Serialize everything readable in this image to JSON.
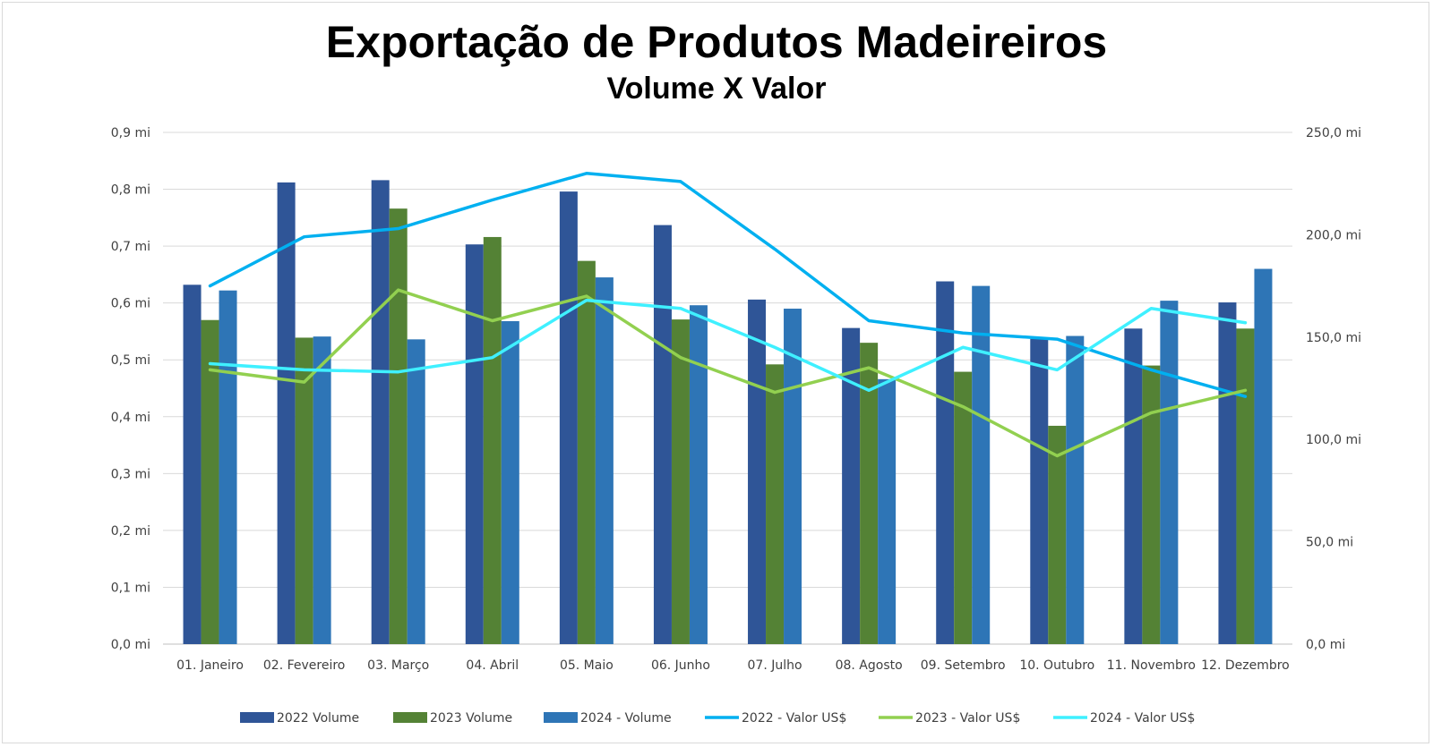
{
  "chart_data": {
    "type": "bar",
    "title": "Exportação de Produtos Madeireiros",
    "subtitle": "Volume X Valor",
    "categories": [
      "01. Janeiro",
      "02. Fevereiro",
      "03. Março",
      "04. Abril",
      "05. Maio",
      "06. Junho",
      "07. Julho",
      "08. Agosto",
      "09. Setembro",
      "10. Outubro",
      "11. Novembro",
      "12. Dezembro"
    ],
    "y_left": {
      "range": [
        0,
        0.9
      ],
      "tick_labels": [
        "0,0 mi",
        "0,1 mi",
        "0,2 mi",
        "0,3 mi",
        "0,4 mi",
        "0,5 mi",
        "0,6 mi",
        "0,7 mi",
        "0,8 mi",
        "0,9 mi"
      ]
    },
    "y_right": {
      "range": [
        0,
        250
      ],
      "tick_labels": [
        "0,0 mi",
        "50,0 mi",
        "100,0 mi",
        "150,0 mi",
        "200,0 mi",
        "250,0 mi"
      ]
    },
    "grid": true,
    "legend_position": "bottom",
    "bar_series": [
      {
        "name": "2022 Volume",
        "color": "#2f5597",
        "values": [
          0.632,
          0.812,
          0.816,
          0.703,
          0.796,
          0.737,
          0.606,
          0.556,
          0.638,
          0.537,
          0.555,
          0.601
        ]
      },
      {
        "name": "2023 Volume",
        "color": "#548235",
        "values": [
          0.57,
          0.539,
          0.766,
          0.716,
          0.674,
          0.571,
          0.492,
          0.53,
          0.479,
          0.384,
          0.49,
          0.555
        ]
      },
      {
        "name": "2024 - Volume",
        "color": "#2e75b6",
        "values": [
          0.622,
          0.541,
          0.536,
          0.568,
          0.645,
          0.596,
          0.59,
          0.466,
          0.63,
          0.542,
          0.604,
          0.66
        ]
      }
    ],
    "line_series": [
      {
        "name": "2022 - Valor US$",
        "color": "#00b0f0",
        "values": [
          175,
          199,
          203,
          217,
          230,
          226,
          193,
          158,
          152,
          149,
          134,
          121
        ]
      },
      {
        "name": "2023 - Valor US$",
        "color": "#92d050",
        "values": [
          134,
          128,
          173,
          158,
          170,
          140,
          123,
          135,
          116,
          92,
          113,
          124
        ]
      },
      {
        "name": "2024 - Valor US$",
        "color": "#3ff0ff",
        "values": [
          137,
          134,
          133,
          140,
          168,
          164,
          145,
          124,
          145,
          134,
          164,
          157
        ]
      }
    ]
  }
}
